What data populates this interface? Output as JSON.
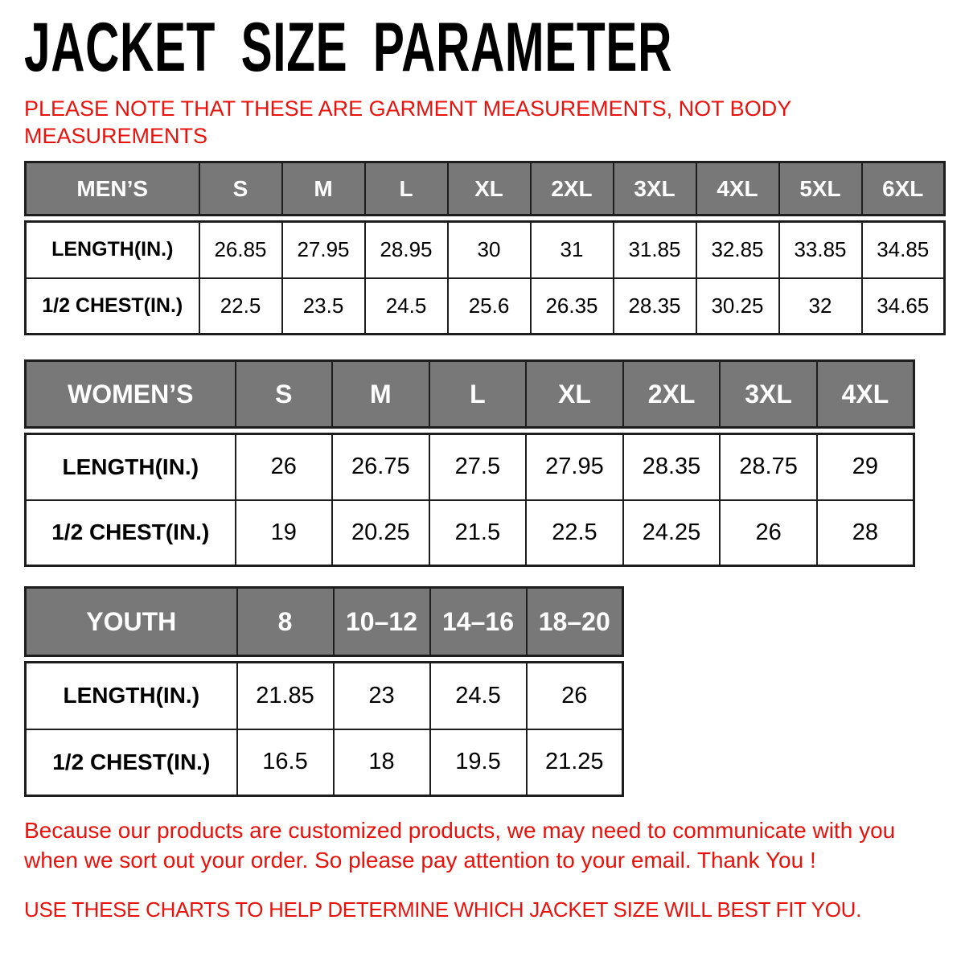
{
  "header": {
    "title": "JACKET SIZE PARAMETER",
    "note_lines": [
      "PLEASE NOTE THAT THESE ARE GARMENT MEASUREMENTS, NOT BODY",
      "MEASUREMENTS"
    ]
  },
  "colors": {
    "accent_red": "#e8120d",
    "table_header_gray": "#787878",
    "table_border": "#1d1d1d"
  },
  "tables": [
    {
      "key": "mens",
      "name": "MEN’S",
      "sizes": [
        "S",
        "M",
        "L",
        "XL",
        "2XL",
        "3XL",
        "4XL",
        "5XL",
        "6XL"
      ],
      "rows": [
        {
          "label": "LENGTH(IN.)",
          "values": [
            "26.85",
            "27.95",
            "28.95",
            "30",
            "31",
            "31.85",
            "32.85",
            "33.85",
            "34.85"
          ]
        },
        {
          "label": "1/2 CHEST(IN.)",
          "values": [
            "22.5",
            "23.5",
            "24.5",
            "25.6",
            "26.35",
            "28.35",
            "30.25",
            "32",
            "34.65"
          ]
        }
      ]
    },
    {
      "key": "womens",
      "name": "WOMEN’S",
      "sizes": [
        "S",
        "M",
        "L",
        "XL",
        "2XL",
        "3XL",
        "4XL"
      ],
      "rows": [
        {
          "label": "LENGTH(IN.)",
          "values": [
            "26",
            "26.75",
            "27.5",
            "27.95",
            "28.35",
            "28.75",
            "29"
          ]
        },
        {
          "label": "1/2 CHEST(IN.)",
          "values": [
            "19",
            "20.25",
            "21.5",
            "22.5",
            "24.25",
            "26",
            "28"
          ]
        }
      ]
    },
    {
      "key": "youth",
      "name": "YOUTH",
      "sizes": [
        "8",
        "10–12",
        "14–16",
        "18–20"
      ],
      "rows": [
        {
          "label": "LENGTH(IN.)",
          "values": [
            "21.85",
            "23",
            "24.5",
            "26"
          ]
        },
        {
          "label": "1/2 CHEST(IN.)",
          "values": [
            "16.5",
            "18",
            "19.5",
            "21.25"
          ]
        }
      ]
    }
  ],
  "footer": {
    "paragraph_lines": [
      "Because our products are customized products, we may need to communicate with you",
      "when we sort out your order. So please pay attention to your email. Thank You !"
    ],
    "final_line": "USE THESE CHARTS TO HELP DETERMINE WHICH JACKET SIZE WILL BEST FIT YOU."
  }
}
